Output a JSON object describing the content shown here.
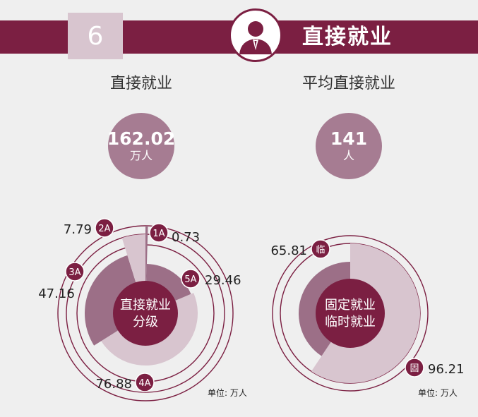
{
  "header": {
    "number": "6",
    "title": "直接就业",
    "icon": "person-icon"
  },
  "stats": [
    {
      "label": "直接就业",
      "value": "162.02",
      "unit": "万人"
    },
    {
      "label": "平均直接就业",
      "value": "141",
      "unit": "人"
    }
  ],
  "colors": {
    "brand": "#7b1f42",
    "medium": "#9c6f87",
    "light": "#d8c5cf",
    "stat_circle": "#a67c92",
    "background": "#efefef"
  },
  "chart_data": [
    {
      "type": "pie",
      "center_label": [
        "直接就业",
        "分级"
      ],
      "categories": [
        "1A",
        "5A",
        "4A",
        "3A",
        "2A"
      ],
      "values": [
        0.73,
        29.46,
        76.88,
        47.16,
        7.79
      ],
      "value_labels": [
        "0.73",
        "29.46",
        "76.88",
        "47.16",
        "7.79"
      ],
      "unit_note": "单位: 万人"
    },
    {
      "type": "pie",
      "center_label": [
        "固定就业",
        "临时就业"
      ],
      "categories": [
        "固",
        "临"
      ],
      "values": [
        96.21,
        65.81
      ],
      "value_labels": [
        "96.21",
        "65.81"
      ],
      "unit_note": "单位: 万人"
    }
  ]
}
